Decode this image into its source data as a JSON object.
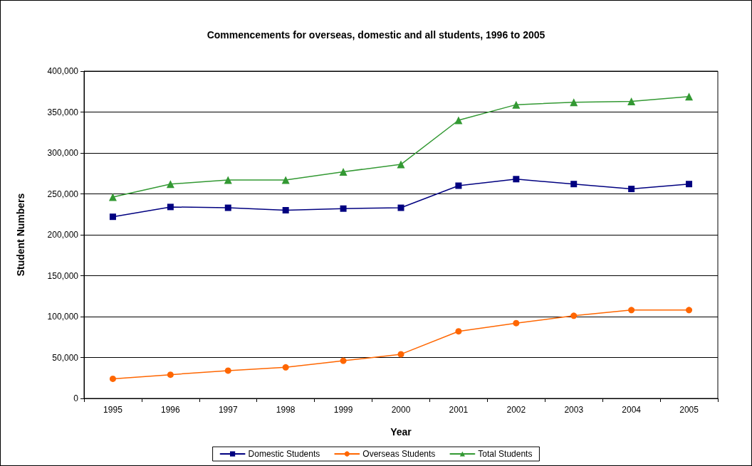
{
  "chart_data": {
    "type": "line",
    "title": "Commencements for overseas, domestic and all students, 1996 to 2005",
    "xlabel": "Year",
    "ylabel": "Student Numbers",
    "categories": [
      "1995",
      "1996",
      "1997",
      "1998",
      "1999",
      "2000",
      "2001",
      "2002",
      "2003",
      "2004",
      "2005"
    ],
    "series": [
      {
        "name": "Domestic Students",
        "color": "#000080",
        "marker": "square",
        "values": [
          222000,
          234000,
          233000,
          230000,
          232000,
          233000,
          260000,
          268000,
          262000,
          256000,
          262000
        ]
      },
      {
        "name": "Overseas Students",
        "color": "#ff6600",
        "marker": "circle",
        "values": [
          24000,
          29000,
          34000,
          38000,
          46000,
          54000,
          82000,
          92000,
          101000,
          108000,
          108000
        ]
      },
      {
        "name": "Total Students",
        "color": "#339933",
        "marker": "triangle",
        "values": [
          246000,
          262000,
          267000,
          267000,
          277000,
          286000,
          340000,
          359000,
          362000,
          363000,
          369000
        ]
      }
    ],
    "ylim": [
      0,
      400000
    ],
    "yticks": [
      0,
      {
        "value": 50000,
        "label": "50,000"
      },
      {
        "value": 100000,
        "label": "100,000"
      },
      {
        "value": 150000,
        "label": "150,000"
      },
      {
        "value": 200000,
        "label": "200,000"
      },
      {
        "value": 250000,
        "label": "250,000"
      },
      {
        "value": 300000,
        "label": "300,000"
      },
      {
        "value": 350000,
        "label": "350,000"
      },
      {
        "value": 400000,
        "label": "400,000"
      }
    ],
    "grid": "y",
    "legend": "bottom",
    "line_style": "solid"
  }
}
